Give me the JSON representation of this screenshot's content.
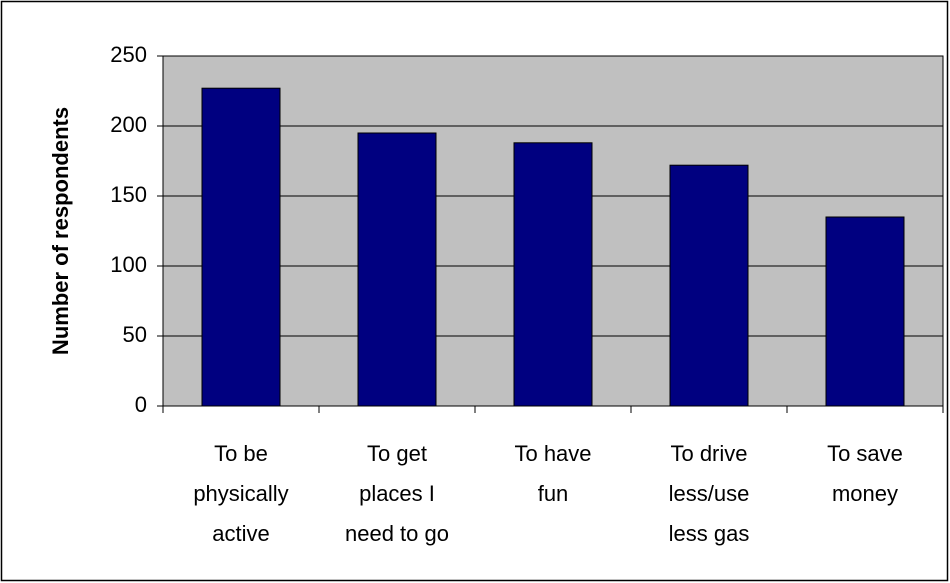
{
  "chart_data": {
    "type": "bar",
    "y_label": "Number of respondents",
    "categories": [
      [
        "To be",
        "physically",
        "active"
      ],
      [
        "To get",
        "places I",
        "need to go"
      ],
      [
        "To have",
        "fun"
      ],
      [
        "To drive",
        "less/use",
        "less gas"
      ],
      [
        "To save",
        "money"
      ]
    ],
    "values": [
      227,
      195,
      188,
      172,
      135
    ],
    "color": "#000080",
    "ylim": [
      0,
      250
    ],
    "yticks": [
      0,
      50,
      100,
      150,
      200,
      250
    ],
    "grid": true
  }
}
